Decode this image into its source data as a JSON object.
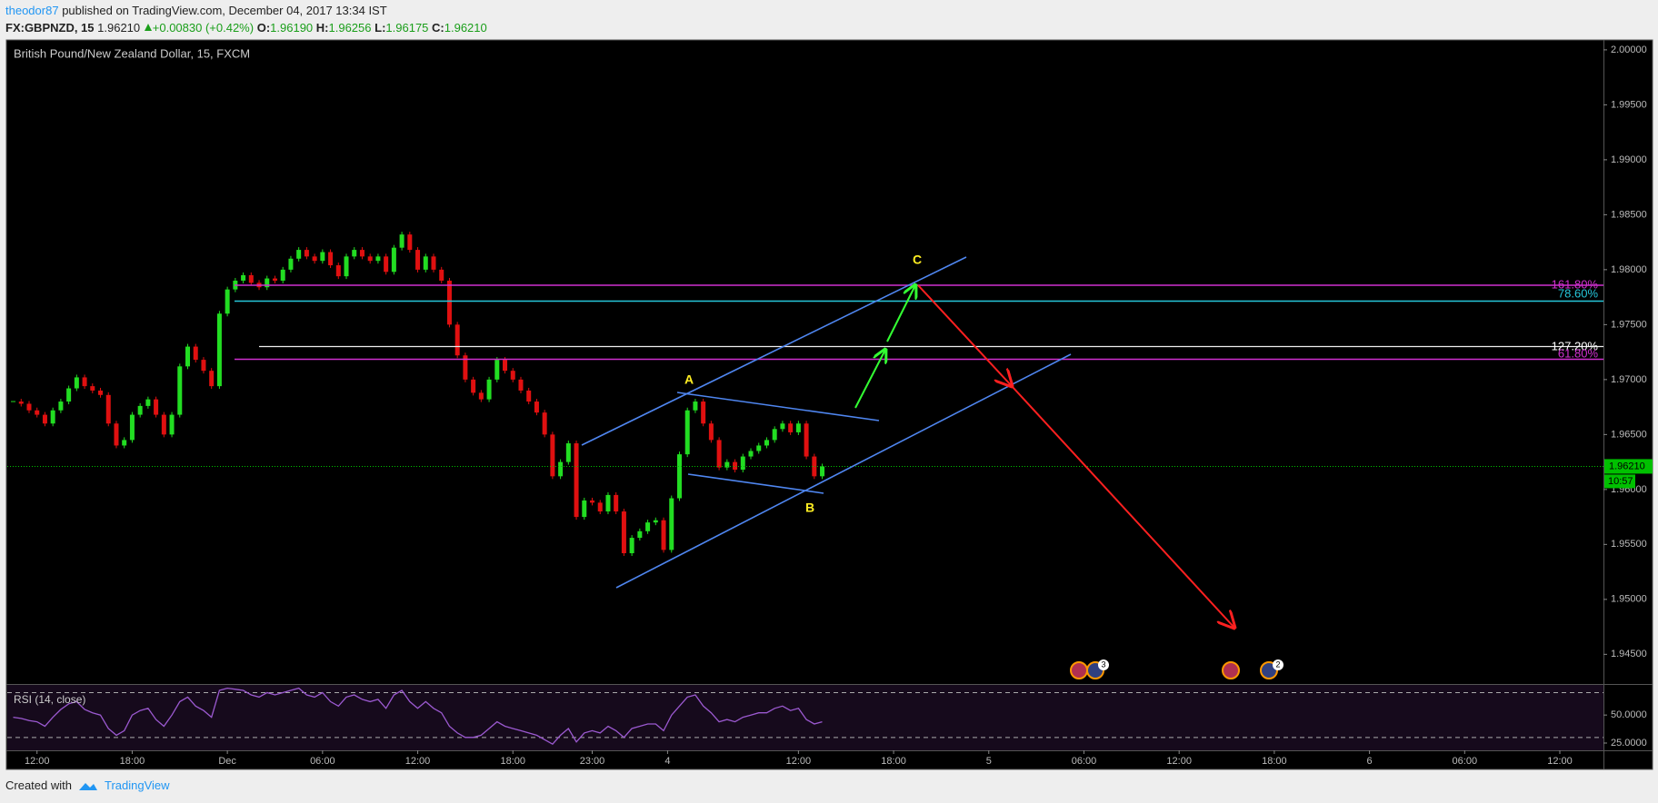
{
  "header": {
    "user": "theodor87",
    "published": "published on TradingView.com, December 04, 2017 13:34 IST",
    "symbol": "FX:GBPNZD, 15",
    "price": "1.96210",
    "change": "+0.00830 (+0.42%)",
    "o_label": "O:",
    "o": "1.96190",
    "h_label": "H:",
    "h": "1.96256",
    "l_label": "L:",
    "l": "1.96175",
    "c_label": "C:",
    "c": "1.96210"
  },
  "chart_data": {
    "type": "candlestick",
    "title": "British Pound/New Zealand Dollar, 15, FXCM",
    "x": [
      -6,
      -4,
      -2,
      0,
      2,
      4,
      6,
      8,
      10,
      12,
      14,
      16,
      18,
      20,
      22,
      24,
      26,
      28,
      30,
      32,
      34,
      36,
      38,
      40,
      42,
      44,
      46,
      48,
      50,
      52,
      54,
      56,
      58,
      60,
      62,
      64,
      66,
      68,
      70,
      72,
      74,
      76,
      78,
      80,
      82,
      84,
      86,
      88,
      90,
      92,
      94,
      96,
      98,
      100,
      102,
      104,
      106,
      108,
      110,
      112,
      114,
      116,
      118,
      120,
      122,
      124,
      126,
      128,
      130,
      132,
      134,
      136,
      138,
      140,
      142,
      144,
      146,
      148,
      150,
      152,
      154,
      156,
      158,
      160,
      162,
      164,
      166,
      168,
      170,
      172,
      174,
      176,
      178,
      180,
      182,
      184,
      186,
      188,
      190,
      192,
      194,
      196,
      198
    ],
    "closes": [
      1.968,
      1.9678,
      1.9672,
      1.9668,
      1.966,
      1.9672,
      1.968,
      1.9692,
      1.9702,
      1.9694,
      1.969,
      1.9686,
      1.966,
      1.964,
      1.9645,
      1.9668,
      1.9676,
      1.9682,
      1.9668,
      1.965,
      1.9668,
      1.9712,
      1.973,
      1.9718,
      1.9708,
      1.9694,
      1.976,
      1.9782,
      1.979,
      1.9795,
      1.9788,
      1.9784,
      1.9792,
      1.979,
      1.98,
      1.981,
      1.9818,
      1.9812,
      1.9808,
      1.9816,
      1.9804,
      1.9794,
      1.9812,
      1.9818,
      1.9812,
      1.9808,
      1.9812,
      1.9798,
      1.982,
      1.9832,
      1.9818,
      1.98,
      1.9812,
      1.98,
      1.979,
      1.975,
      1.9722,
      1.97,
      1.9688,
      1.9682,
      1.97,
      1.9718,
      1.9708,
      1.97,
      1.969,
      1.968,
      1.967,
      1.965,
      1.9612,
      1.9625,
      1.9642,
      1.9575,
      1.959,
      1.9588,
      1.958,
      1.9595,
      1.958,
      1.9542,
      1.9556,
      1.9562,
      1.957,
      1.9572,
      1.9545,
      1.9592,
      1.9632,
      1.9672,
      1.968,
      1.966,
      1.9645,
      1.962,
      1.9625,
      1.9618,
      1.963,
      1.9635,
      1.964,
      1.9645,
      1.9655,
      1.966,
      1.9652,
      1.966,
      1.963,
      1.9612,
      1.9621
    ],
    "up_color": "#22dd22",
    "down_color": "#e01010",
    "xlim": [
      -7.5,
      395
    ],
    "xticks": [
      {
        "value": 0,
        "label": "12:00"
      },
      {
        "value": 24,
        "label": "18:00"
      },
      {
        "value": 48,
        "label": "Dec"
      },
      {
        "value": 72,
        "label": "06:00"
      },
      {
        "value": 96,
        "label": "12:00"
      },
      {
        "value": 120,
        "label": "18:00"
      },
      {
        "value": 140,
        "label": "23:00"
      },
      {
        "value": 159,
        "label": "4"
      },
      {
        "value": 192,
        "label": "12:00"
      },
      {
        "value": 216,
        "label": "18:00"
      },
      {
        "value": 240,
        "label": "5"
      },
      {
        "value": 264,
        "label": "06:00"
      },
      {
        "value": 288,
        "label": "12:00"
      },
      {
        "value": 312,
        "label": "18:00"
      },
      {
        "value": 336,
        "label": "6"
      },
      {
        "value": 360,
        "label": "06:00"
      },
      {
        "value": 384,
        "label": "12:00"
      }
    ],
    "ylim": [
      1.9423,
      2.0009
    ],
    "yticks": [
      {
        "value": 1.945,
        "label": "1.94500"
      },
      {
        "value": 1.95,
        "label": "1.95000"
      },
      {
        "value": 1.955,
        "label": "1.95500"
      },
      {
        "value": 1.96,
        "label": "1.96000"
      },
      {
        "value": 1.965,
        "label": "1.96500"
      },
      {
        "value": 1.97,
        "label": "1.97000"
      },
      {
        "value": 1.975,
        "label": "1.97500"
      },
      {
        "value": 1.98,
        "label": "1.98000"
      },
      {
        "value": 1.985,
        "label": "1.98500"
      },
      {
        "value": 1.99,
        "label": "1.99000"
      },
      {
        "value": 1.995,
        "label": "1.99500"
      },
      {
        "value": 2.0,
        "label": "2.00000"
      }
    ],
    "last_price": {
      "value": 1.9621,
      "label": "1.96210"
    },
    "countdown": "10:57",
    "last_price_color": "#00c000",
    "rsi": {
      "title": "RSI (14, close)",
      "color": "#9b59d0",
      "ylim": [
        18.5,
        76.9
      ],
      "bands": [
        30,
        70
      ],
      "yticks": [
        {
          "value": 25,
          "label": "25.0000"
        },
        {
          "value": 50,
          "label": "50.0000"
        }
      ],
      "values": [
        48,
        47,
        45,
        44,
        40,
        48,
        55,
        60,
        62,
        55,
        52,
        50,
        38,
        32,
        36,
        50,
        54,
        56,
        46,
        40,
        50,
        62,
        66,
        58,
        54,
        48,
        72,
        74,
        73,
        72,
        68,
        66,
        70,
        68,
        70,
        72,
        74,
        68,
        66,
        70,
        62,
        58,
        66,
        68,
        64,
        62,
        64,
        56,
        68,
        72,
        62,
        56,
        62,
        56,
        52,
        40,
        34,
        30,
        30,
        32,
        38,
        44,
        40,
        38,
        36,
        34,
        32,
        28,
        24,
        32,
        38,
        26,
        34,
        36,
        34,
        40,
        36,
        30,
        38,
        40,
        42,
        42,
        36,
        50,
        58,
        66,
        68,
        58,
        52,
        44,
        46,
        44,
        48,
        50,
        52,
        52,
        56,
        58,
        54,
        56,
        46,
        42,
        44
      ]
    }
  },
  "annotations": {
    "fib_1618": "161.80%",
    "fib_786": "78.60%",
    "fib_1272": "127.20%",
    "fib_618": "61.80%",
    "point_a": "A",
    "point_b": "B",
    "point_c": "C",
    "event_count_1": "3",
    "event_count_2": "2"
  },
  "footer": {
    "created": "Created with",
    "brand": "TradingView"
  }
}
